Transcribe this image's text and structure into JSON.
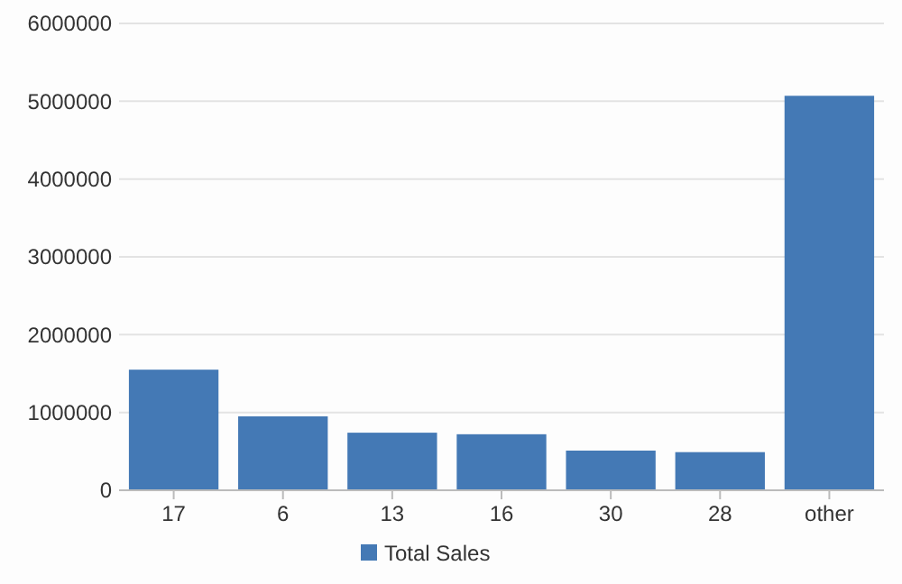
{
  "chart_data": {
    "type": "bar",
    "categories": [
      "17",
      "6",
      "13",
      "16",
      "30",
      "28",
      "other"
    ],
    "series": [
      {
        "name": "Total Sales",
        "color": "#4479b5",
        "values": [
          1550000,
          950000,
          740000,
          720000,
          510000,
          490000,
          5070000
        ]
      }
    ],
    "ylim": [
      0,
      6000000
    ],
    "yticks": [
      0,
      1000000,
      2000000,
      3000000,
      4000000,
      5000000,
      6000000
    ],
    "grid": "y",
    "legend": "bottom"
  }
}
